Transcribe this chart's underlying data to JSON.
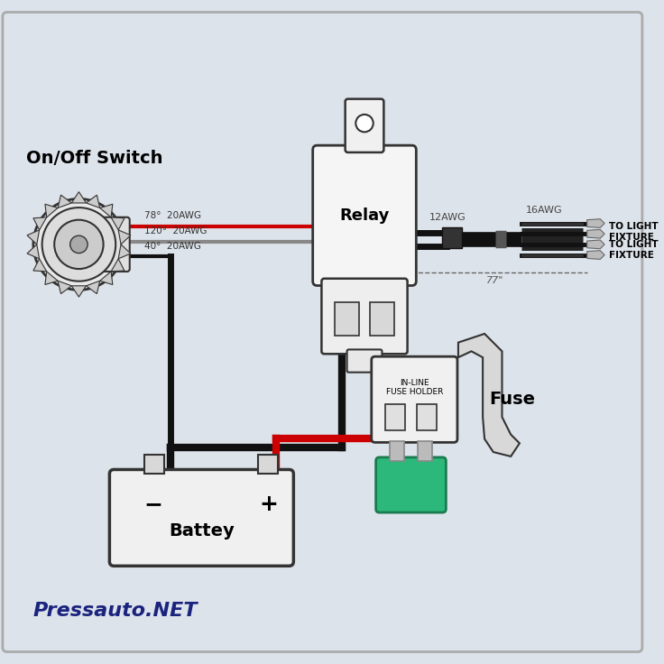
{
  "bg_color": "#dde3ea",
  "border_color": "#333333",
  "wire_black": "#111111",
  "wire_red": "#cc0000",
  "relay_label": "Relay",
  "battery_label": "Battey",
  "fuse_label": "Fuse",
  "switch_label": "On/Off Switch",
  "fuse_holder_label": "IN-LINE\nFUSE HOLDER",
  "wire_label_1": "78°  20AWG",
  "wire_label_2": "120°  20AWG",
  "wire_label_3": "40°  20AWG",
  "label_12awg": "12AWG",
  "label_16awg": "16AWG",
  "to_light_1": "TO LIGHT\nFIXTURE",
  "to_light_2": "TO LIGHT\nFIXTURE",
  "dim_label": "77\"",
  "pressauto_label": "Pressauto.NET",
  "pressauto_color": "#1a237e"
}
